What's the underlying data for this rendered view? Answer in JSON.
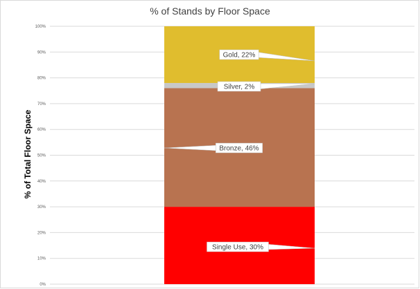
{
  "chart_data": {
    "type": "bar",
    "stacked": true,
    "title": "% of Stands by Floor Space",
    "xlabel": "",
    "ylabel": "% of Total Floor Space",
    "ylim": [
      0,
      100
    ],
    "yticks": [
      "0%",
      "10%",
      "20%",
      "30%",
      "40%",
      "50%",
      "60%",
      "70%",
      "80%",
      "90%",
      "100%"
    ],
    "categories": [
      ""
    ],
    "grid": true,
    "legend": "none",
    "series": [
      {
        "name": "Single Use",
        "values": [
          30
        ],
        "color": "#ff0000",
        "label": "Single Use, 30%"
      },
      {
        "name": "Bronze",
        "values": [
          46
        ],
        "color": "#b87350",
        "label": "Bronze, 46%"
      },
      {
        "name": "Silver",
        "values": [
          2
        ],
        "color": "#c8c8c8",
        "label": "Silver, 2%"
      },
      {
        "name": "Gold",
        "values": [
          22
        ],
        "color": "#e0bd2e",
        "label": "Gold, 22%"
      }
    ]
  }
}
